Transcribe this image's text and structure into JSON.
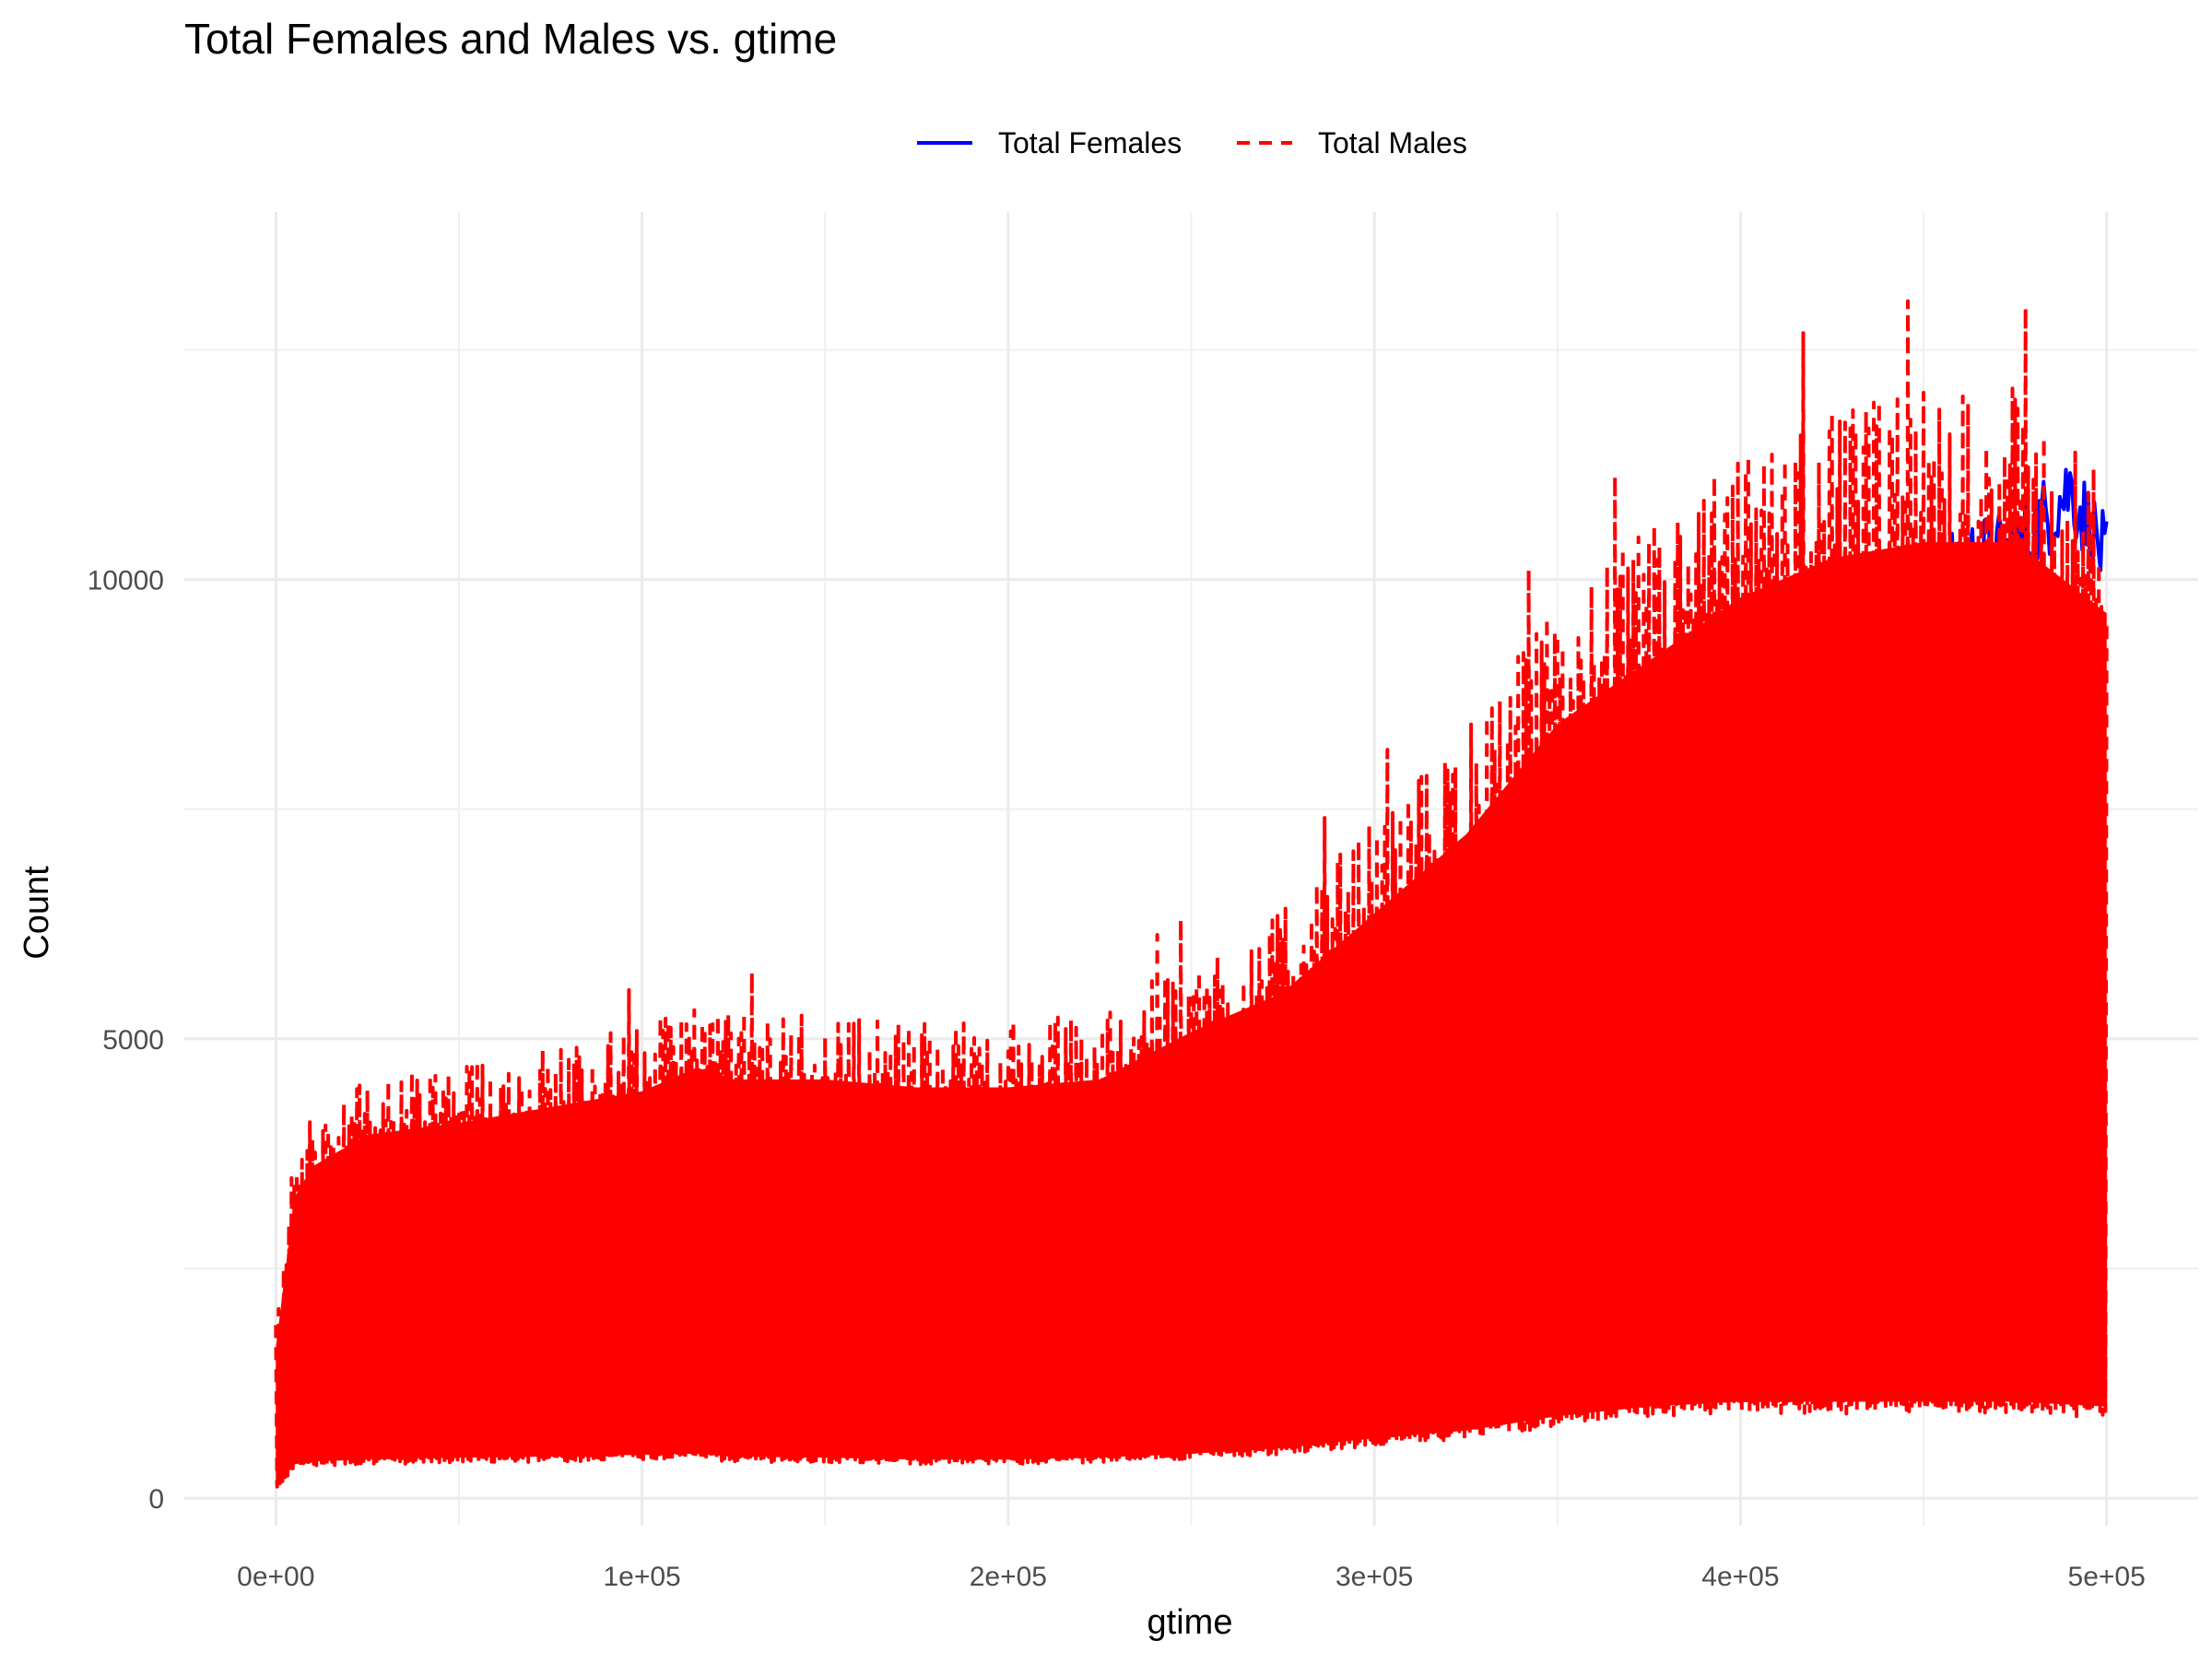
{
  "chart_data": {
    "type": "line",
    "title": "Total Females and Males vs. gtime",
    "xlabel": "gtime",
    "ylabel": "Count",
    "xlim": [
      -25000,
      525000
    ],
    "ylim": [
      -300,
      14000
    ],
    "x_ticks": [
      0,
      100000,
      200000,
      300000,
      400000,
      500000
    ],
    "x_tick_labels": [
      "0e+00",
      "1e+05",
      "2e+05",
      "3e+05",
      "4e+05",
      "5e+05"
    ],
    "y_ticks": [
      0,
      5000,
      10000
    ],
    "y_tick_labels": [
      "0",
      "5000",
      "10000"
    ],
    "grid": true,
    "legend_position": "top",
    "legend": [
      {
        "label": "Total Females",
        "color": "#0000ff",
        "style": "solid"
      },
      {
        "label": "Total Males",
        "color": "#ff0000",
        "style": "dashed"
      }
    ],
    "series": [
      {
        "name": "Total Females",
        "color": "#0000ff",
        "style": "solid",
        "x": [
          0,
          10000,
          25000,
          50000,
          75000,
          100000,
          125000,
          150000,
          175000,
          200000,
          225000,
          250000,
          275000,
          300000,
          325000,
          350000,
          375000,
          400000,
          425000,
          450000,
          460000,
          475000,
          490000,
          500000
        ],
        "y": [
          1050,
          1200,
          1230,
          1280,
          1330,
          1400,
          1520,
          1600,
          1700,
          1780,
          1970,
          2250,
          2600,
          3000,
          3600,
          4400,
          5900,
          7200,
          8400,
          9600,
          10200,
          10300,
          11000,
          10200
        ]
      },
      {
        "name": "Total Males",
        "color": "#ff0000",
        "style": "dashed",
        "envelope": true,
        "x": [
          0,
          5000,
          10000,
          25000,
          50000,
          75000,
          100000,
          115000,
          125000,
          150000,
          175000,
          200000,
          225000,
          250000,
          275000,
          300000,
          325000,
          350000,
          375000,
          400000,
          425000,
          450000,
          475000,
          500000
        ],
        "y_max": [
          1900,
          3800,
          4200,
          4600,
          4750,
          4950,
          5150,
          5450,
          5300,
          5300,
          5200,
          5200,
          5300,
          5900,
          6400,
          7400,
          8400,
          9800,
          10600,
          11400,
          11900,
          12100,
          12100,
          11200
        ],
        "y_min": [
          100,
          350,
          380,
          400,
          420,
          430,
          450,
          460,
          430,
          420,
          400,
          400,
          420,
          460,
          520,
          620,
          700,
          850,
          950,
          1000,
          1000,
          1000,
          1000,
          950
        ]
      }
    ]
  }
}
